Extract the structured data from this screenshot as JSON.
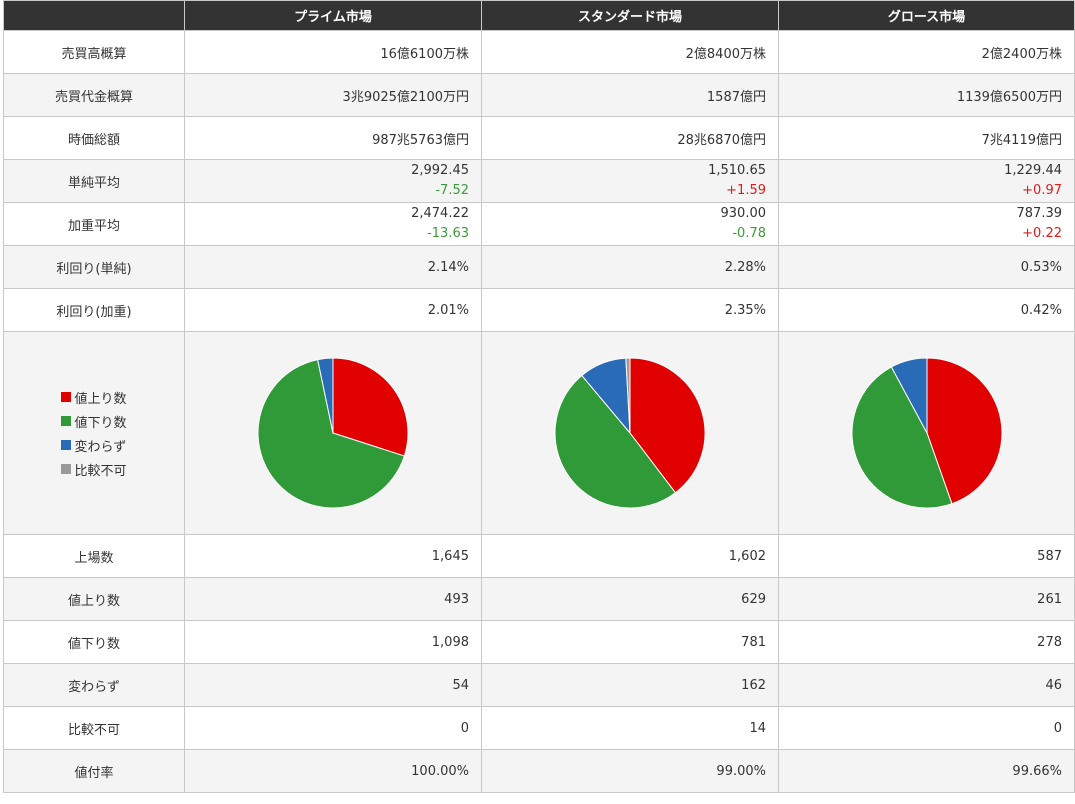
{
  "header": {
    "markets": [
      "プライム市場",
      "スタンダード市場",
      "グロース市場"
    ]
  },
  "rows": {
    "volume": {
      "label": "売買高概算",
      "values": [
        "16億6100万株",
        "2億8400万株",
        "2億2400万株"
      ]
    },
    "turnover": {
      "label": "売買代金概算",
      "values": [
        "3兆9025億2100万円",
        "1587億円",
        "1139億6500万円"
      ]
    },
    "market_cap": {
      "label": "時価総額",
      "values": [
        "987兆5763億円",
        "28兆6870億円",
        "7兆4119億円"
      ]
    },
    "simple_avg": {
      "label": "単純平均",
      "values": [
        "2,992.45",
        "1,510.65",
        "1,229.44"
      ],
      "changes": [
        "-7.52",
        "+1.59",
        "+0.97"
      ]
    },
    "weighted_avg": {
      "label": "加重平均",
      "values": [
        "2,474.22",
        "930.00",
        "787.39"
      ],
      "changes": [
        "-13.63",
        "-0.78",
        "+0.22"
      ]
    },
    "yield_simple": {
      "label": "利回り(単純)",
      "values": [
        "2.14%",
        "2.28%",
        "0.53%"
      ]
    },
    "yield_weighted": {
      "label": "利回り(加重)",
      "values": [
        "2.01%",
        "2.35%",
        "0.42%"
      ]
    },
    "listed": {
      "label": "上場数",
      "values": [
        "1,645",
        "1,602",
        "587"
      ]
    },
    "advances": {
      "label": "値上り数",
      "values": [
        "493",
        "629",
        "261"
      ]
    },
    "declines": {
      "label": "値下り数",
      "values": [
        "1,098",
        "781",
        "278"
      ]
    },
    "unchanged": {
      "label": "変わらず",
      "values": [
        "54",
        "162",
        "46"
      ]
    },
    "not_comparable": {
      "label": "比較不可",
      "values": [
        "0",
        "14",
        "0"
      ]
    },
    "priced_ratio": {
      "label": "値付率",
      "values": [
        "100.00%",
        "99.00%",
        "99.66%"
      ]
    }
  },
  "legend": [
    {
      "label": "値上り数",
      "color": "#e00000"
    },
    {
      "label": "値下り数",
      "color": "#2f9a37"
    },
    {
      "label": "変わらず",
      "color": "#2a6bb8"
    },
    {
      "label": "比較不可",
      "color": "#999999"
    }
  ],
  "chart_data": [
    {
      "type": "pie",
      "title": "",
      "categories": [
        "値上り数",
        "値下り数",
        "変わらず",
        "比較不可"
      ],
      "values": [
        493,
        1098,
        54,
        0
      ],
      "colors": [
        "#e00000",
        "#2f9a37",
        "#2a6bb8",
        "#999999"
      ]
    },
    {
      "type": "pie",
      "title": "",
      "categories": [
        "値上り数",
        "値下り数",
        "変わらず",
        "比較不可"
      ],
      "values": [
        629,
        781,
        162,
        14
      ],
      "colors": [
        "#e00000",
        "#2f9a37",
        "#2a6bb8",
        "#999999"
      ]
    },
    {
      "type": "pie",
      "title": "",
      "categories": [
        "値上り数",
        "値下り数",
        "変わらず",
        "比較不可"
      ],
      "values": [
        261,
        278,
        46,
        0
      ],
      "colors": [
        "#e00000",
        "#2f9a37",
        "#2a6bb8",
        "#999999"
      ]
    }
  ]
}
